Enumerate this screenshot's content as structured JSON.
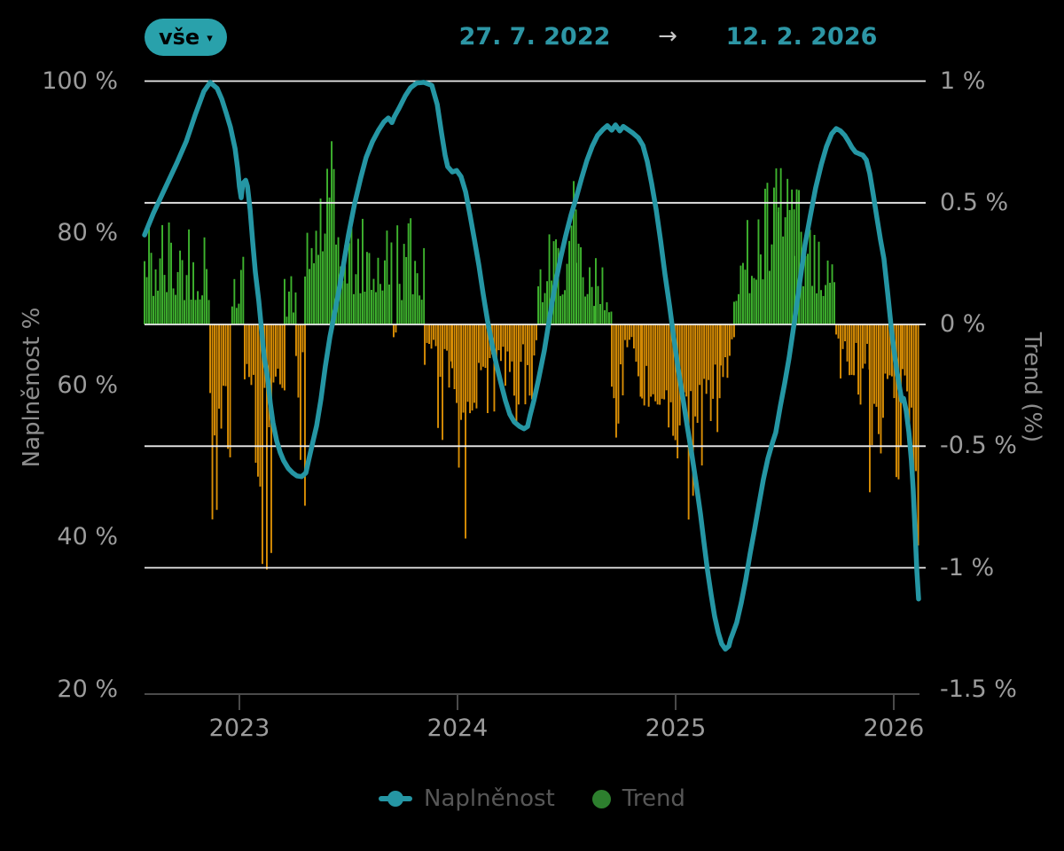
{
  "header": {
    "filter_label": "vše",
    "filter_caret": "▾",
    "date_from": "27. 7. 2022",
    "arrow": "→",
    "date_to": "12. 2. 2026"
  },
  "colors": {
    "background": "#000000",
    "line": "#2596a4",
    "bar_positive": "#3eb32e",
    "bar_negative": "#d98e05",
    "gridline": "#ededed",
    "axis_line": "#4a4a4a",
    "axis_text": "#9c9c9c",
    "axis_title_text": "#8d8d8d",
    "legend_text": "#575757",
    "accent_teal": "#29a1ab",
    "chip_text": "#000000",
    "date_text": "#2d96a5",
    "arrow_text": "#c8c8c8",
    "legend_trend_dot": "#2d7f2e"
  },
  "chart_data": {
    "type": "combo",
    "x_axis": {
      "ticks": [
        "2023",
        "2024",
        "2025",
        "2026"
      ],
      "tick_years": [
        2023,
        2024,
        2025,
        2026
      ],
      "domain_years": [
        2022.565,
        2026.118
      ]
    },
    "left_axis": {
      "title": "Naplněnost %",
      "ticks": [
        "100 %",
        "80 %",
        "60 %",
        "40 %",
        "20 %"
      ],
      "tick_values": [
        100,
        80,
        60,
        40,
        20
      ]
    },
    "right_axis": {
      "title": "Trend (%)",
      "ticks": [
        "1 %",
        "0.5 %",
        "0 %",
        "-0.5 %",
        "-1 %",
        "-1.5 %"
      ],
      "tick_values": [
        1,
        0.5,
        0,
        -0.5,
        -1,
        -1.5
      ],
      "gridline_values": [
        1,
        0.5,
        0,
        -0.5,
        -1
      ]
    },
    "legend": [
      {
        "label": "Naplněnost",
        "marker": "line-dot",
        "color": "#2596a4"
      },
      {
        "label": "Trend",
        "marker": "dot",
        "color": "#2d7f2e"
      }
    ],
    "series": [
      {
        "name": "Naplněnost",
        "type": "line",
        "unit": "%",
        "color": "#2596a4",
        "points": [
          [
            2022.565,
            79.8
          ],
          [
            2022.606,
            82.7
          ],
          [
            2022.663,
            86.2
          ],
          [
            2022.715,
            89.4
          ],
          [
            2022.756,
            92.1
          ],
          [
            2022.797,
            95.6
          ],
          [
            2022.837,
            98.7
          ],
          [
            2022.866,
            99.9
          ],
          [
            2022.898,
            99.1
          ],
          [
            2022.919,
            97.7
          ],
          [
            2022.939,
            95.9
          ],
          [
            2022.959,
            94.0
          ],
          [
            2022.98,
            91.2
          ],
          [
            2022.992,
            88.6
          ],
          [
            2023.0,
            86.2
          ],
          [
            2023.008,
            84.7
          ],
          [
            2023.016,
            86.6
          ],
          [
            2023.029,
            87.0
          ],
          [
            2023.037,
            86.2
          ],
          [
            2023.049,
            83.1
          ],
          [
            2023.061,
            78.9
          ],
          [
            2023.073,
            74.9
          ],
          [
            2023.089,
            71.1
          ],
          [
            2023.102,
            67.2
          ],
          [
            2023.114,
            63.7
          ],
          [
            2023.13,
            60.9
          ],
          [
            2023.142,
            57.6
          ],
          [
            2023.154,
            55.1
          ],
          [
            2023.171,
            52.7
          ],
          [
            2023.187,
            51.2
          ],
          [
            2023.203,
            50.1
          ],
          [
            2023.224,
            49.1
          ],
          [
            2023.244,
            48.5
          ],
          [
            2023.264,
            48.1
          ],
          [
            2023.285,
            48.0
          ],
          [
            2023.305,
            48.5
          ],
          [
            2023.317,
            50.1
          ],
          [
            2023.333,
            52.1
          ],
          [
            2023.354,
            54.7
          ],
          [
            2023.374,
            58.2
          ],
          [
            2023.394,
            62.5
          ],
          [
            2023.415,
            66.4
          ],
          [
            2023.447,
            71.1
          ],
          [
            2023.476,
            75.7
          ],
          [
            2023.5,
            79.8
          ],
          [
            2023.528,
            83.9
          ],
          [
            2023.557,
            87.4
          ],
          [
            2023.581,
            90.0
          ],
          [
            2023.61,
            92.1
          ],
          [
            2023.638,
            93.6
          ],
          [
            2023.663,
            94.7
          ],
          [
            2023.683,
            95.2
          ],
          [
            2023.699,
            94.6
          ],
          [
            2023.711,
            95.4
          ],
          [
            2023.732,
            96.5
          ],
          [
            2023.76,
            98.1
          ],
          [
            2023.785,
            99.2
          ],
          [
            2023.813,
            99.8
          ],
          [
            2023.846,
            99.9
          ],
          [
            2023.882,
            99.5
          ],
          [
            2023.907,
            97.0
          ],
          [
            2023.927,
            93.2
          ],
          [
            2023.943,
            90.3
          ],
          [
            2023.955,
            88.8
          ],
          [
            2023.976,
            88.1
          ],
          [
            2023.996,
            88.3
          ],
          [
            2024.016,
            87.5
          ],
          [
            2024.037,
            85.5
          ],
          [
            2024.057,
            82.5
          ],
          [
            2024.077,
            79.3
          ],
          [
            2024.098,
            75.8
          ],
          [
            2024.118,
            72.0
          ],
          [
            2024.138,
            68.5
          ],
          [
            2024.159,
            65.3
          ],
          [
            2024.179,
            62.7
          ],
          [
            2024.199,
            60.3
          ],
          [
            2024.22,
            58.0
          ],
          [
            2024.24,
            56.2
          ],
          [
            2024.26,
            55.2
          ],
          [
            2024.285,
            54.6
          ],
          [
            2024.305,
            54.3
          ],
          [
            2024.321,
            54.6
          ],
          [
            2024.333,
            56.1
          ],
          [
            2024.35,
            58.0
          ],
          [
            2024.37,
            60.6
          ],
          [
            2024.398,
            64.6
          ],
          [
            2024.423,
            69.1
          ],
          [
            2024.447,
            73.2
          ],
          [
            2024.472,
            76.7
          ],
          [
            2024.496,
            79.7
          ],
          [
            2024.52,
            82.4
          ],
          [
            2024.545,
            84.8
          ],
          [
            2024.569,
            87.3
          ],
          [
            2024.593,
            89.6
          ],
          [
            2024.618,
            91.5
          ],
          [
            2024.642,
            92.9
          ],
          [
            2024.667,
            93.7
          ],
          [
            2024.687,
            94.2
          ],
          [
            2024.707,
            93.6
          ],
          [
            2024.724,
            94.3
          ],
          [
            2024.744,
            93.5
          ],
          [
            2024.76,
            94.1
          ],
          [
            2024.78,
            93.7
          ],
          [
            2024.805,
            93.2
          ],
          [
            2024.829,
            92.6
          ],
          [
            2024.85,
            91.6
          ],
          [
            2024.87,
            89.5
          ],
          [
            2024.89,
            86.6
          ],
          [
            2024.911,
            83.1
          ],
          [
            2024.931,
            79.1
          ],
          [
            2024.951,
            74.7
          ],
          [
            2024.972,
            70.5
          ],
          [
            2024.992,
            66.2
          ],
          [
            2025.012,
            62.1
          ],
          [
            2025.033,
            58.4
          ],
          [
            2025.053,
            54.7
          ],
          [
            2025.073,
            51.1
          ],
          [
            2025.093,
            47.3
          ],
          [
            2025.114,
            43.1
          ],
          [
            2025.13,
            39.3
          ],
          [
            2025.146,
            35.7
          ],
          [
            2025.163,
            32.4
          ],
          [
            2025.179,
            29.6
          ],
          [
            2025.195,
            27.5
          ],
          [
            2025.211,
            26.0
          ],
          [
            2025.228,
            25.3
          ],
          [
            2025.244,
            25.7
          ],
          [
            2025.252,
            26.6
          ],
          [
            2025.264,
            27.5
          ],
          [
            2025.28,
            28.8
          ],
          [
            2025.301,
            31.4
          ],
          [
            2025.321,
            34.4
          ],
          [
            2025.341,
            37.8
          ],
          [
            2025.362,
            41.1
          ],
          [
            2025.382,
            44.4
          ],
          [
            2025.402,
            47.6
          ],
          [
            2025.423,
            50.4
          ],
          [
            2025.443,
            52.4
          ],
          [
            2025.459,
            53.8
          ],
          [
            2025.48,
            57.3
          ],
          [
            2025.5,
            60.3
          ],
          [
            2025.52,
            63.6
          ],
          [
            2025.545,
            68.5
          ],
          [
            2025.569,
            73.6
          ],
          [
            2025.593,
            78.5
          ],
          [
            2025.618,
            82.4
          ],
          [
            2025.642,
            86.0
          ],
          [
            2025.667,
            89.0
          ],
          [
            2025.691,
            91.4
          ],
          [
            2025.715,
            93.1
          ],
          [
            2025.736,
            93.8
          ],
          [
            2025.756,
            93.5
          ],
          [
            2025.776,
            92.9
          ],
          [
            2025.793,
            92.1
          ],
          [
            2025.809,
            91.3
          ],
          [
            2025.825,
            90.7
          ],
          [
            2025.841,
            90.5
          ],
          [
            2025.858,
            90.3
          ],
          [
            2025.874,
            89.7
          ],
          [
            2025.89,
            87.9
          ],
          [
            2025.906,
            85.1
          ],
          [
            2025.923,
            82.0
          ],
          [
            2025.939,
            79.2
          ],
          [
            2025.955,
            76.7
          ],
          [
            2025.972,
            72.2
          ],
          [
            2025.988,
            67.8
          ],
          [
            2026.0,
            64.9
          ],
          [
            2026.012,
            62.3
          ],
          [
            2026.024,
            60.2
          ],
          [
            2026.037,
            58.0
          ],
          [
            2026.045,
            58.3
          ],
          [
            2026.057,
            56.7
          ],
          [
            2026.069,
            53.9
          ],
          [
            2026.081,
            50.1
          ],
          [
            2026.089,
            46.3
          ],
          [
            2026.098,
            40.7
          ],
          [
            2026.106,
            35.5
          ],
          [
            2026.114,
            31.9
          ]
        ]
      },
      {
        "name": "Trend",
        "type": "bar",
        "unit": "%",
        "color_positive": "#3eb32e",
        "color_negative": "#d98e05",
        "baseline": 0,
        "segments": [
          {
            "from": 2022.565,
            "to": 2022.866,
            "dir": 1,
            "lo": 0.1,
            "hi": 0.5,
            "shape": "flat"
          },
          {
            "from": 2022.866,
            "to": 2022.967,
            "dir": -1,
            "lo": 0.25,
            "hi": 1.0,
            "shape": "flat"
          },
          {
            "from": 2022.967,
            "to": 2023.024,
            "dir": 1,
            "lo": 0.05,
            "hi": 0.35,
            "shape": "flat"
          },
          {
            "from": 2023.024,
            "to": 2023.207,
            "dir": -1,
            "lo": 0.25,
            "hi": 1.1,
            "shape": "bell"
          },
          {
            "from": 2023.207,
            "to": 2023.26,
            "dir": 1,
            "lo": 0.03,
            "hi": 0.22,
            "shape": "flat"
          },
          {
            "from": 2023.26,
            "to": 2023.301,
            "dir": -1,
            "lo": 0.1,
            "hi": 0.75,
            "shape": "flat"
          },
          {
            "from": 2023.301,
            "to": 2023.504,
            "dir": 1,
            "lo": 0.25,
            "hi": 0.78,
            "shape": "bell"
          },
          {
            "from": 2023.504,
            "to": 2023.707,
            "dir": 1,
            "lo": 0.12,
            "hi": 0.45,
            "shape": "flat"
          },
          {
            "from": 2023.707,
            "to": 2023.724,
            "dir": -1,
            "lo": 0.03,
            "hi": 0.15,
            "shape": "flat"
          },
          {
            "from": 2023.724,
            "to": 2023.85,
            "dir": 1,
            "lo": 0.1,
            "hi": 0.5,
            "shape": "flat"
          },
          {
            "from": 2023.85,
            "to": 2023.976,
            "dir": -1,
            "lo": 0.1,
            "hi": 0.6,
            "shape": "rise"
          },
          {
            "from": 2023.976,
            "to": 2024.077,
            "dir": -1,
            "lo": 0.25,
            "hi": 1.05,
            "shape": "bell"
          },
          {
            "from": 2024.077,
            "to": 2024.37,
            "dir": -1,
            "lo": 0.12,
            "hi": 0.72,
            "shape": "fall"
          },
          {
            "from": 2024.37,
            "to": 2024.545,
            "dir": 1,
            "lo": 0.15,
            "hi": 0.62,
            "shape": "rise"
          },
          {
            "from": 2024.545,
            "to": 2024.634,
            "dir": 1,
            "lo": 0.1,
            "hi": 0.45,
            "shape": "fall"
          },
          {
            "from": 2024.634,
            "to": 2024.707,
            "dir": 1,
            "lo": 0.05,
            "hi": 0.3,
            "shape": "flat"
          },
          {
            "from": 2024.707,
            "to": 2024.846,
            "dir": -1,
            "lo": 0.05,
            "hi": 0.5,
            "shape": "flat"
          },
          {
            "from": 2024.846,
            "to": 2025.207,
            "dir": -1,
            "lo": 0.28,
            "hi": 0.88,
            "shape": "bell"
          },
          {
            "from": 2025.207,
            "to": 2025.268,
            "dir": -1,
            "lo": 0.05,
            "hi": 0.3,
            "shape": "flat"
          },
          {
            "from": 2025.268,
            "to": 2025.472,
            "dir": 1,
            "lo": 0.2,
            "hi": 0.72,
            "shape": "rise"
          },
          {
            "from": 2025.472,
            "to": 2025.545,
            "dir": 1,
            "lo": 0.3,
            "hi": 0.8,
            "shape": "flat"
          },
          {
            "from": 2025.545,
            "to": 2025.736,
            "dir": 1,
            "lo": 0.12,
            "hi": 0.6,
            "shape": "fall"
          },
          {
            "from": 2025.736,
            "to": 2025.89,
            "dir": -1,
            "lo": 0.08,
            "hi": 0.45,
            "shape": "rise"
          },
          {
            "from": 2025.89,
            "to": 2026.041,
            "dir": -1,
            "lo": 0.2,
            "hi": 0.8,
            "shape": "flat"
          },
          {
            "from": 2026.041,
            "to": 2026.118,
            "dir": -1,
            "lo": 0.4,
            "hi": 1.05,
            "shape": "rise"
          }
        ]
      }
    ]
  }
}
